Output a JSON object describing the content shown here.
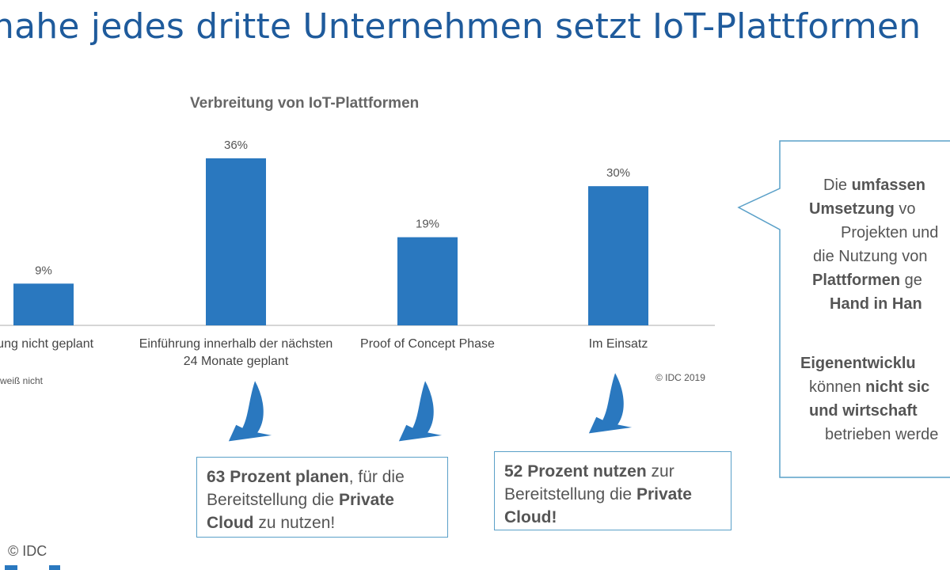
{
  "headline": "nahe jedes dritte Unternehmen setzt IoT-Plattformen",
  "chart_data": {
    "type": "bar",
    "title": "Verbreitung von IoT-Plattformen",
    "categories": [
      "Einführung nicht geplant",
      "Einführung innerhalb der nächsten 24 Monate geplant",
      "Proof of Concept Phase",
      "Im Einsatz"
    ],
    "category_labels_visible": [
      "hrung nicht geplant",
      "Einführung innerhalb der nächsten 24 Monate geplant",
      "Proof of Concept Phase",
      "Im Einsatz"
    ],
    "values": [
      9,
      36,
      19,
      30
    ],
    "value_labels": [
      "9%",
      "36%",
      "19%",
      "30%"
    ],
    "unit": "%",
    "ylim": [
      0,
      40
    ],
    "bar_color": "#2a78bf",
    "footnote": "weiß nicht",
    "source": "© IDC 2019"
  },
  "callouts": {
    "box1": {
      "bold1": "63 Prozent planen",
      "text1": ", für die Bereitstellung die ",
      "bold2": "Private Cloud",
      "text2": " zu nutzen!"
    },
    "box2": {
      "bold1": "52 Prozent nutzen",
      "text1": " zur Bereitstellung die ",
      "bold2": "Private Cloud!"
    }
  },
  "bubble": {
    "l1a": "Die ",
    "l1b": "umfassen",
    "l2a": "Umsetzung",
    "l2b": " vo",
    "l3": "Projekten und",
    "l4": "die Nutzung von",
    "l5a": "Plattformen",
    "l5b": " ge",
    "l6": "Hand in Han",
    "l7": "Eigenentwicklu",
    "l8a": "können ",
    "l8b": "nicht sic",
    "l9": "und wirtschaft",
    "l10": "betrieben werde"
  },
  "footer": "© IDC",
  "colors": {
    "title": "#1f5b9c",
    "bar": "#2a78bf",
    "arrow": "#2a78bf",
    "box_border": "#5aa0c8",
    "text": "#555555"
  }
}
